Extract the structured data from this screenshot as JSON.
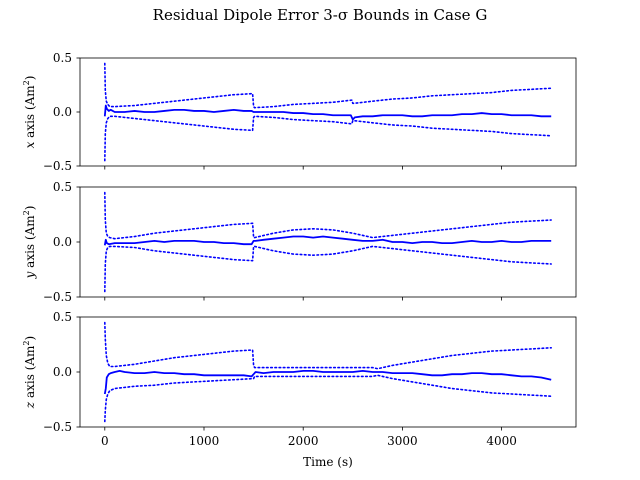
{
  "figure": {
    "title": "Residual Dipole Error 3-σ Bounds in Case G",
    "xlabel": "Time (s)"
  },
  "chart_data": {
    "type": "line",
    "title": "Residual Dipole Error 3-σ Bounds in Case G",
    "xlabel": "Time (s)",
    "xlim": [
      -250,
      4750
    ],
    "xticks": [
      0,
      1000,
      2000,
      3000,
      4000
    ],
    "panels": [
      {
        "ylabel_axis": "x",
        "ylabel_rest": " axis (Am",
        "ylabel_sup": "2",
        "ylabel_close": ")",
        "ylim": [
          -0.5,
          0.5
        ],
        "yticks": [
          0.5,
          0.0,
          -0.5
        ],
        "ytick_labels": [
          "0.5",
          "0.0",
          "−0.5"
        ],
        "series": [
          {
            "role": "estimate-error",
            "style": "solid",
            "color": "#0000ff",
            "x": [
              0,
              10,
              20,
              40,
              60,
              100,
              200,
              300,
              400,
              500,
              600,
              700,
              800,
              900,
              1000,
              1100,
              1200,
              1300,
              1400,
              1480,
              1500,
              1520,
              1600,
              1700,
              1800,
              1900,
              2000,
              2100,
              2200,
              2300,
              2400,
              2480,
              2500,
              2520,
              2600,
              2700,
              2800,
              2900,
              3000,
              3100,
              3200,
              3300,
              3400,
              3500,
              3600,
              3700,
              3800,
              3900,
              4000,
              4100,
              4200,
              4300,
              4400,
              4500
            ],
            "y": [
              -0.04,
              0.06,
              0.03,
              0.01,
              0.02,
              0.0,
              0.0,
              0.01,
              0.0,
              0.0,
              0.01,
              0.02,
              0.02,
              0.01,
              0.01,
              0.0,
              0.01,
              0.02,
              0.01,
              0.01,
              0.0,
              0.0,
              0.0,
              0.0,
              0.0,
              -0.01,
              -0.01,
              -0.02,
              -0.02,
              -0.03,
              -0.03,
              -0.03,
              -0.07,
              -0.05,
              -0.04,
              -0.04,
              -0.03,
              -0.03,
              -0.03,
              -0.04,
              -0.04,
              -0.03,
              -0.03,
              -0.03,
              -0.02,
              -0.02,
              -0.01,
              -0.02,
              -0.02,
              -0.03,
              -0.03,
              -0.03,
              -0.04,
              -0.04
            ]
          },
          {
            "role": "upper-bound",
            "style": "dotted",
            "color": "#0000ff",
            "x": [
              0,
              5,
              15,
              30,
              50,
              100,
              300,
              500,
              700,
              900,
              1100,
              1300,
              1490,
              1500,
              1510,
              1700,
              1900,
              2100,
              2300,
              2490,
              2500,
              2510,
              2700,
              2900,
              3100,
              3300,
              3500,
              3700,
              3900,
              4100,
              4300,
              4500
            ],
            "y": [
              0.45,
              0.2,
              0.1,
              0.07,
              0.05,
              0.05,
              0.06,
              0.08,
              0.1,
              0.12,
              0.14,
              0.16,
              0.17,
              0.05,
              0.04,
              0.05,
              0.07,
              0.08,
              0.09,
              0.11,
              0.08,
              0.08,
              0.1,
              0.12,
              0.13,
              0.15,
              0.16,
              0.17,
              0.18,
              0.2,
              0.21,
              0.22
            ]
          },
          {
            "role": "lower-bound",
            "style": "dotted",
            "color": "#0000ff",
            "x": [
              0,
              5,
              15,
              30,
              50,
              100,
              300,
              500,
              700,
              900,
              1100,
              1300,
              1490,
              1500,
              1510,
              1700,
              1900,
              2100,
              2300,
              2490,
              2500,
              2510,
              2700,
              2900,
              3100,
              3300,
              3500,
              3700,
              3900,
              4100,
              4300,
              4500
            ],
            "y": [
              -0.45,
              -0.2,
              -0.1,
              -0.06,
              -0.04,
              -0.04,
              -0.06,
              -0.08,
              -0.1,
              -0.12,
              -0.14,
              -0.16,
              -0.17,
              -0.05,
              -0.04,
              -0.05,
              -0.07,
              -0.08,
              -0.09,
              -0.11,
              -0.08,
              -0.08,
              -0.1,
              -0.12,
              -0.13,
              -0.15,
              -0.16,
              -0.17,
              -0.18,
              -0.2,
              -0.21,
              -0.22
            ]
          }
        ]
      },
      {
        "ylabel_axis": "y",
        "ylabel_rest": " axis (Am",
        "ylabel_sup": "2",
        "ylabel_close": ")",
        "ylim": [
          -0.5,
          0.5
        ],
        "yticks": [
          0.5,
          0.0,
          -0.5
        ],
        "ytick_labels": [
          "0.5",
          "0.0",
          "−0.5"
        ],
        "series": [
          {
            "role": "estimate-error",
            "style": "solid",
            "color": "#0000ff",
            "x": [
              0,
              10,
              20,
              40,
              100,
              200,
              300,
              400,
              500,
              600,
              700,
              800,
              900,
              1000,
              1100,
              1200,
              1300,
              1400,
              1480,
              1500,
              1520,
              1600,
              1700,
              1800,
              1900,
              2000,
              2100,
              2200,
              2300,
              2400,
              2500,
              2600,
              2700,
              2800,
              2900,
              3000,
              3100,
              3200,
              3300,
              3400,
              3500,
              3600,
              3700,
              3800,
              3900,
              4000,
              4100,
              4200,
              4300,
              4400,
              4500
            ],
            "y": [
              -0.03,
              0.02,
              -0.01,
              -0.02,
              -0.01,
              -0.01,
              -0.01,
              0.0,
              0.01,
              0.0,
              0.01,
              0.01,
              0.01,
              0.0,
              0.0,
              -0.01,
              -0.01,
              -0.02,
              -0.02,
              0.01,
              0.01,
              0.02,
              0.03,
              0.04,
              0.05,
              0.05,
              0.04,
              0.05,
              0.04,
              0.03,
              0.02,
              0.01,
              0.01,
              0.02,
              0.0,
              0.0,
              -0.01,
              0.0,
              0.0,
              -0.01,
              -0.01,
              0.0,
              0.01,
              0.0,
              0.0,
              0.01,
              0.0,
              0.0,
              0.01,
              0.01,
              0.01
            ]
          },
          {
            "role": "upper-bound",
            "style": "dotted",
            "color": "#0000ff",
            "x": [
              0,
              5,
              15,
              30,
              50,
              100,
              300,
              500,
              700,
              900,
              1100,
              1300,
              1490,
              1500,
              1510,
              1700,
              1900,
              2100,
              2300,
              2500,
              2700,
              2900,
              3100,
              3300,
              3500,
              3700,
              3900,
              4100,
              4300,
              4500
            ],
            "y": [
              0.45,
              0.2,
              0.08,
              0.05,
              0.04,
              0.03,
              0.05,
              0.08,
              0.1,
              0.12,
              0.14,
              0.16,
              0.17,
              0.04,
              0.04,
              0.08,
              0.11,
              0.12,
              0.11,
              0.08,
              0.04,
              0.06,
              0.08,
              0.1,
              0.12,
              0.14,
              0.16,
              0.18,
              0.19,
              0.2
            ]
          },
          {
            "role": "lower-bound",
            "style": "dotted",
            "color": "#0000ff",
            "x": [
              0,
              5,
              15,
              30,
              50,
              100,
              300,
              500,
              700,
              900,
              1100,
              1300,
              1490,
              1500,
              1510,
              1700,
              1900,
              2100,
              2300,
              2500,
              2700,
              2900,
              3100,
              3300,
              3500,
              3700,
              3900,
              4100,
              4300,
              4500
            ],
            "y": [
              -0.45,
              -0.2,
              -0.08,
              -0.05,
              -0.04,
              -0.04,
              -0.05,
              -0.08,
              -0.1,
              -0.12,
              -0.14,
              -0.16,
              -0.17,
              -0.04,
              -0.04,
              -0.08,
              -0.11,
              -0.12,
              -0.11,
              -0.08,
              -0.04,
              -0.06,
              -0.08,
              -0.1,
              -0.12,
              -0.14,
              -0.16,
              -0.18,
              -0.19,
              -0.2
            ]
          }
        ]
      },
      {
        "ylabel_axis": "z",
        "ylabel_rest": " axis (Am",
        "ylabel_sup": "2",
        "ylabel_close": ")",
        "ylim": [
          -0.5,
          0.5
        ],
        "yticks": [
          0.5,
          0.0,
          -0.5
        ],
        "ytick_labels": [
          "0.5",
          "0.0",
          "−0.5"
        ],
        "series": [
          {
            "role": "estimate-error",
            "style": "solid",
            "color": "#0000ff",
            "x": [
              0,
              10,
              20,
              40,
              60,
              100,
              150,
              200,
              300,
              400,
              500,
              600,
              700,
              800,
              900,
              1000,
              1100,
              1200,
              1300,
              1400,
              1480,
              1500,
              1520,
              1600,
              1700,
              1800,
              1900,
              2000,
              2100,
              2200,
              2300,
              2400,
              2500,
              2600,
              2700,
              2800,
              2900,
              3000,
              3100,
              3200,
              3300,
              3400,
              3500,
              3600,
              3700,
              3800,
              3900,
              4000,
              4100,
              4200,
              4300,
              4400,
              4500
            ],
            "y": [
              -0.2,
              -0.15,
              -0.05,
              -0.02,
              -0.01,
              0.0,
              0.01,
              0.0,
              -0.01,
              -0.01,
              0.0,
              -0.01,
              -0.01,
              -0.02,
              -0.02,
              -0.03,
              -0.03,
              -0.03,
              -0.03,
              -0.03,
              -0.04,
              -0.02,
              0.0,
              -0.01,
              0.0,
              0.0,
              0.0,
              0.01,
              0.01,
              0.0,
              0.0,
              0.0,
              0.0,
              0.01,
              0.0,
              0.0,
              -0.01,
              -0.01,
              -0.01,
              -0.02,
              -0.03,
              -0.03,
              -0.02,
              -0.02,
              -0.01,
              -0.01,
              -0.02,
              -0.02,
              -0.03,
              -0.04,
              -0.04,
              -0.05,
              -0.07
            ]
          },
          {
            "role": "upper-bound",
            "style": "dotted",
            "color": "#0000ff",
            "x": [
              0,
              5,
              15,
              30,
              50,
              100,
              300,
              500,
              700,
              900,
              1100,
              1300,
              1490,
              1500,
              1510,
              1700,
              1900,
              2100,
              2300,
              2500,
              2700,
              2750,
              2900,
              3100,
              3300,
              3500,
              3700,
              3900,
              4100,
              4300,
              4500
            ],
            "y": [
              0.45,
              0.3,
              0.15,
              0.08,
              0.05,
              0.05,
              0.07,
              0.1,
              0.13,
              0.15,
              0.17,
              0.19,
              0.2,
              0.06,
              0.04,
              0.04,
              0.04,
              0.04,
              0.04,
              0.04,
              0.04,
              0.03,
              0.06,
              0.09,
              0.12,
              0.15,
              0.17,
              0.19,
              0.2,
              0.21,
              0.22
            ]
          },
          {
            "role": "lower-bound",
            "style": "dotted",
            "color": "#0000ff",
            "x": [
              0,
              5,
              15,
              30,
              50,
              100,
              300,
              500,
              700,
              900,
              1100,
              1300,
              1490,
              1500,
              1510,
              1700,
              1900,
              2100,
              2300,
              2500,
              2700,
              2750,
              2900,
              3100,
              3300,
              3500,
              3700,
              3900,
              4100,
              4300,
              4500
            ],
            "y": [
              -0.45,
              -0.35,
              -0.25,
              -0.2,
              -0.17,
              -0.15,
              -0.13,
              -0.12,
              -0.1,
              -0.09,
              -0.08,
              -0.07,
              -0.06,
              -0.06,
              -0.04,
              -0.04,
              -0.04,
              -0.04,
              -0.04,
              -0.04,
              -0.04,
              -0.03,
              -0.06,
              -0.09,
              -0.12,
              -0.15,
              -0.17,
              -0.19,
              -0.2,
              -0.21,
              -0.22
            ]
          }
        ]
      }
    ]
  }
}
